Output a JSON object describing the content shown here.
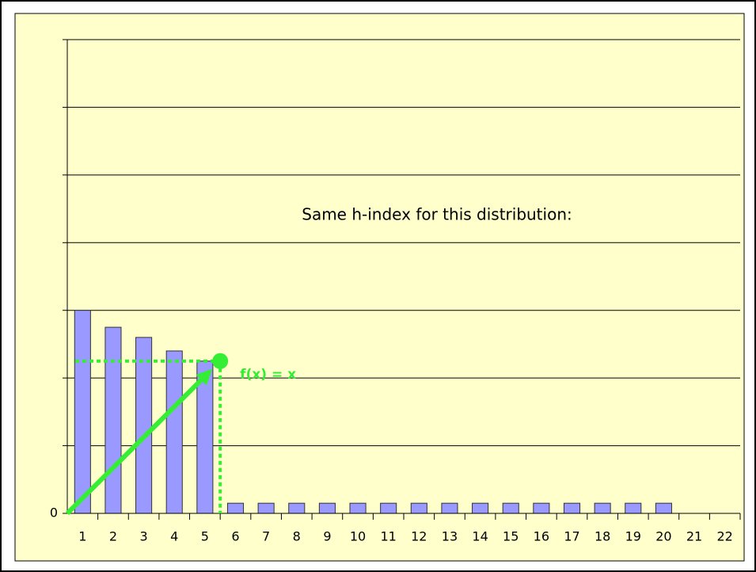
{
  "chart_data": {
    "type": "bar",
    "categories": [
      "1",
      "2",
      "3",
      "4",
      "5",
      "6",
      "7",
      "8",
      "9",
      "10",
      "11",
      "12",
      "13",
      "14",
      "15",
      "16",
      "17",
      "18",
      "19",
      "20",
      "21",
      "22"
    ],
    "values": [
      3.0,
      2.75,
      2.6,
      2.4,
      2.25,
      0.15,
      0.15,
      0.15,
      0.15,
      0.15,
      0.15,
      0.15,
      0.15,
      0.15,
      0.15,
      0.15,
      0.15,
      0.15,
      0.15,
      0.15,
      null,
      null
    ],
    "color": "#9999ff",
    "ylim": [
      0,
      7
    ],
    "yticks": [
      0
    ],
    "grid_lines": [
      1,
      2,
      3,
      4,
      5,
      6,
      7
    ],
    "grid": true,
    "annotations": [
      "Same h-index for this distribution:",
      "f(x) = x"
    ],
    "h_point": {
      "x": 5.5,
      "y": 2.25
    },
    "h_color": "#33ee33"
  }
}
